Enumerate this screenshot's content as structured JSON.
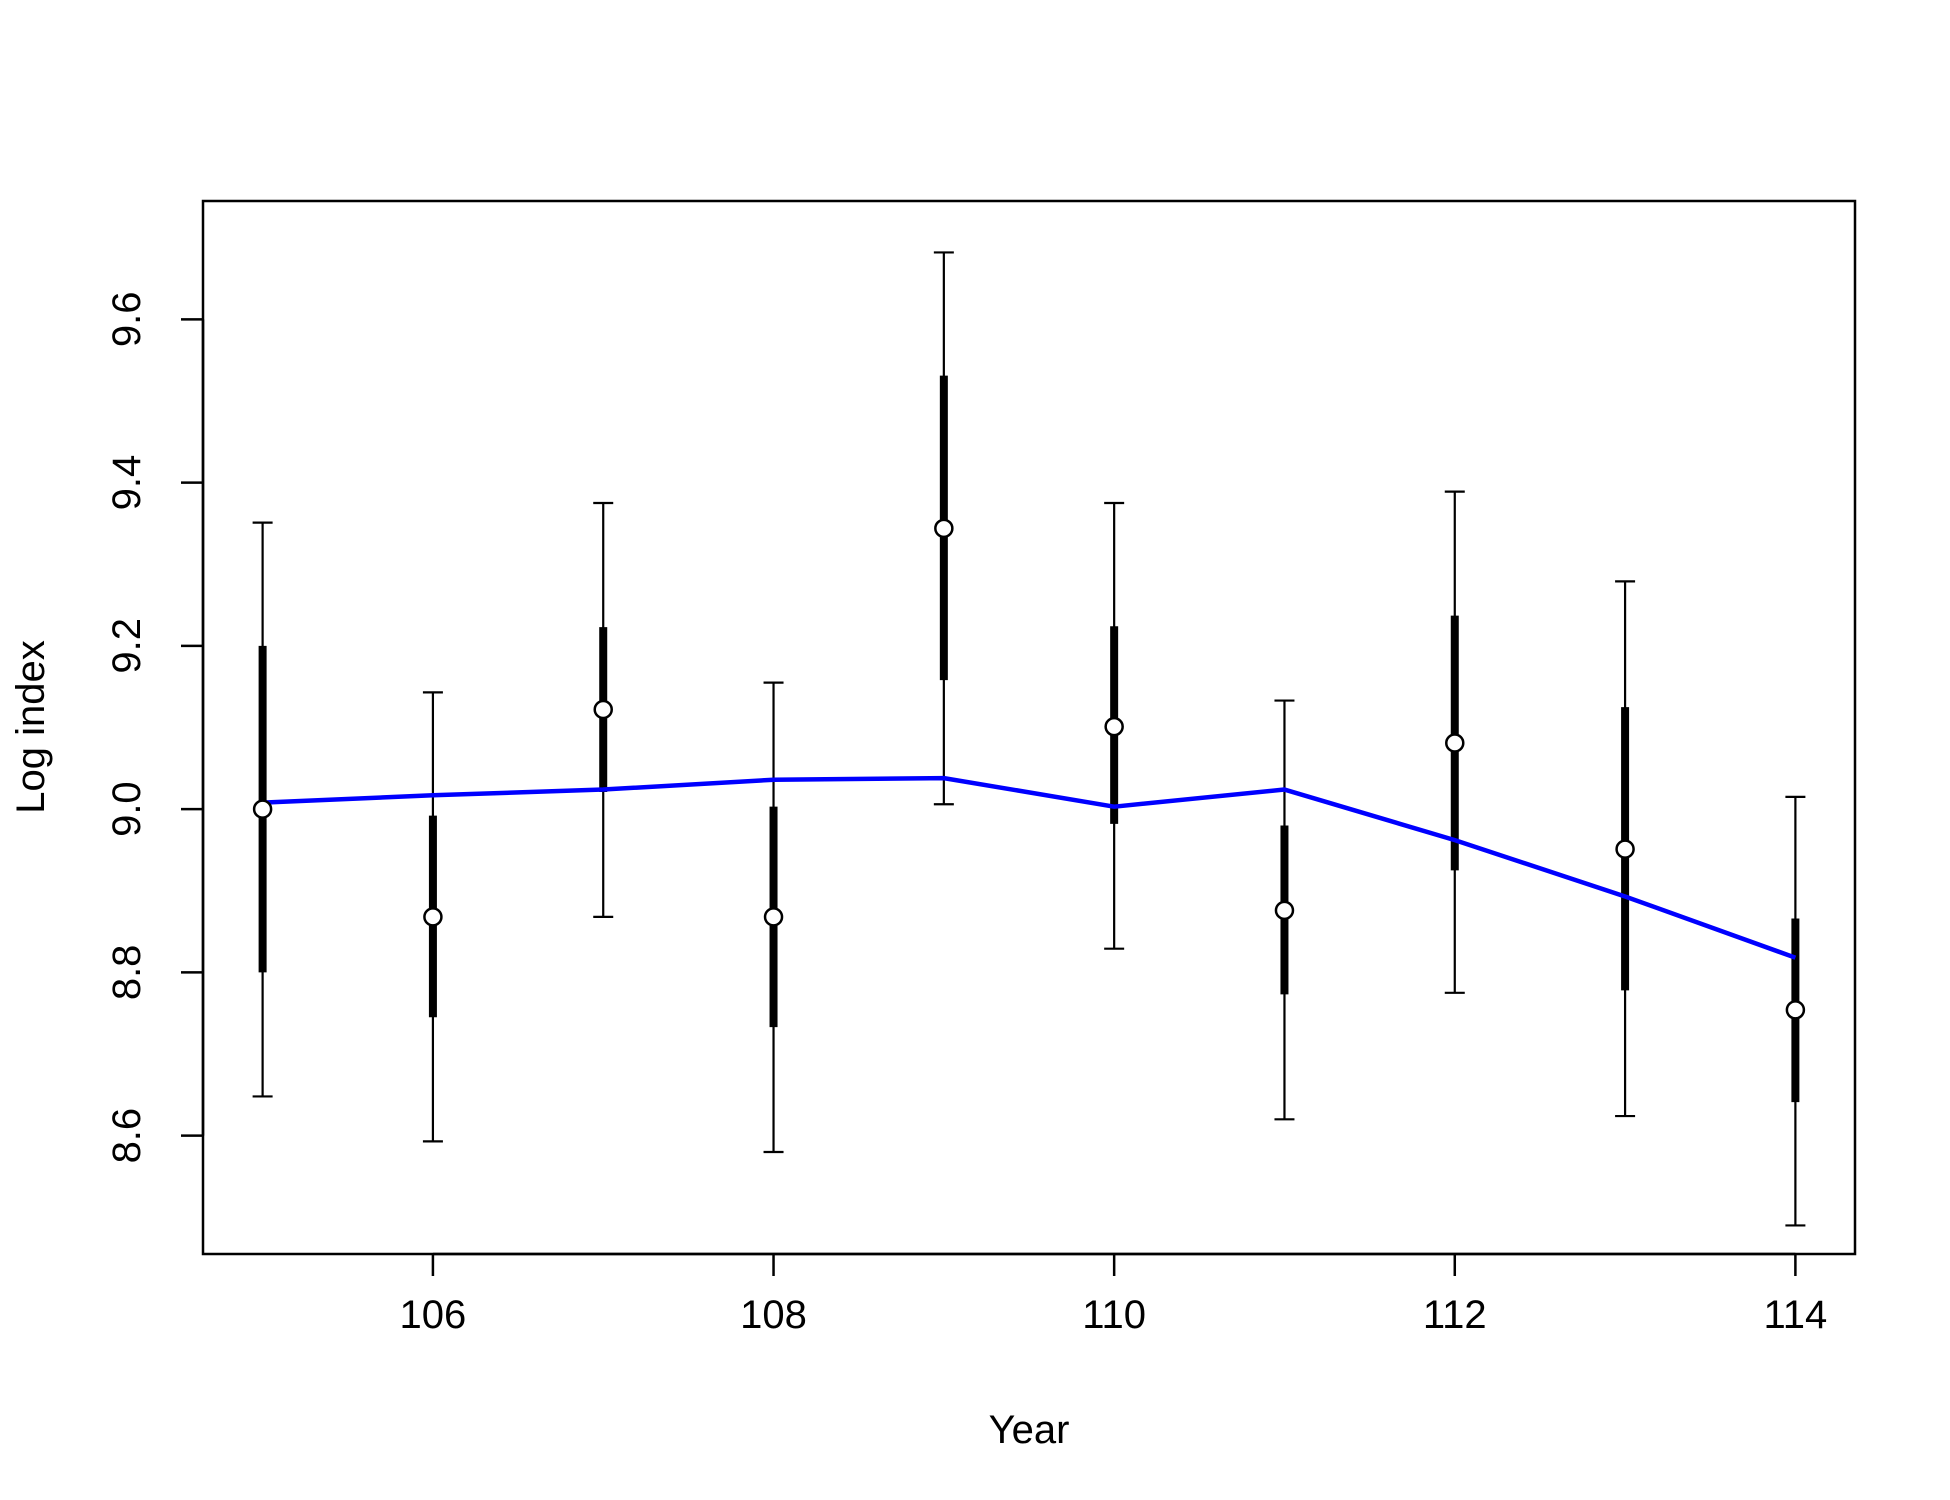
{
  "chart_data": {
    "type": "line",
    "title": "",
    "xlabel": "Year",
    "ylabel": "Log index",
    "xlim": [
      104.65,
      114.35
    ],
    "ylim": [
      8.455,
      9.745
    ],
    "xticks": [
      106,
      108,
      110,
      112,
      114
    ],
    "xtick_labels": [
      "106",
      "108",
      "110",
      "112",
      "114"
    ],
    "yticks": [
      8.6,
      8.8,
      9.0,
      9.2,
      9.4,
      9.6
    ],
    "ytick_labels": [
      "8.6",
      "8.8",
      "9.0",
      "9.2",
      "9.4",
      "9.6"
    ],
    "grid": false,
    "x": [
      105,
      106,
      107,
      108,
      109,
      110,
      111,
      112,
      113,
      114
    ],
    "observed": {
      "marker": "open-circle",
      "values": [
        9.0,
        8.868,
        9.122,
        8.868,
        9.344,
        9.101,
        8.876,
        9.081,
        8.951,
        8.754
      ],
      "inner_lower": [
        8.8,
        8.745,
        9.021,
        8.733,
        9.158,
        8.982,
        8.773,
        8.925,
        8.778,
        8.641
      ],
      "inner_upper": [
        9.2,
        8.992,
        9.223,
        9.003,
        9.531,
        9.224,
        8.98,
        9.237,
        9.125,
        8.866
      ],
      "outer_lower": [
        8.648,
        8.593,
        8.868,
        8.58,
        9.006,
        8.829,
        8.62,
        8.775,
        8.624,
        8.49
      ],
      "outer_upper": [
        9.351,
        9.143,
        9.375,
        9.155,
        9.682,
        9.375,
        9.133,
        9.389,
        9.279,
        9.015
      ]
    },
    "series": [
      {
        "color": "#0000ff",
        "values": [
          9.008,
          9.017,
          9.024,
          9.036,
          9.038,
          9.003,
          9.024,
          8.962,
          8.893,
          8.818
        ]
      }
    ]
  }
}
